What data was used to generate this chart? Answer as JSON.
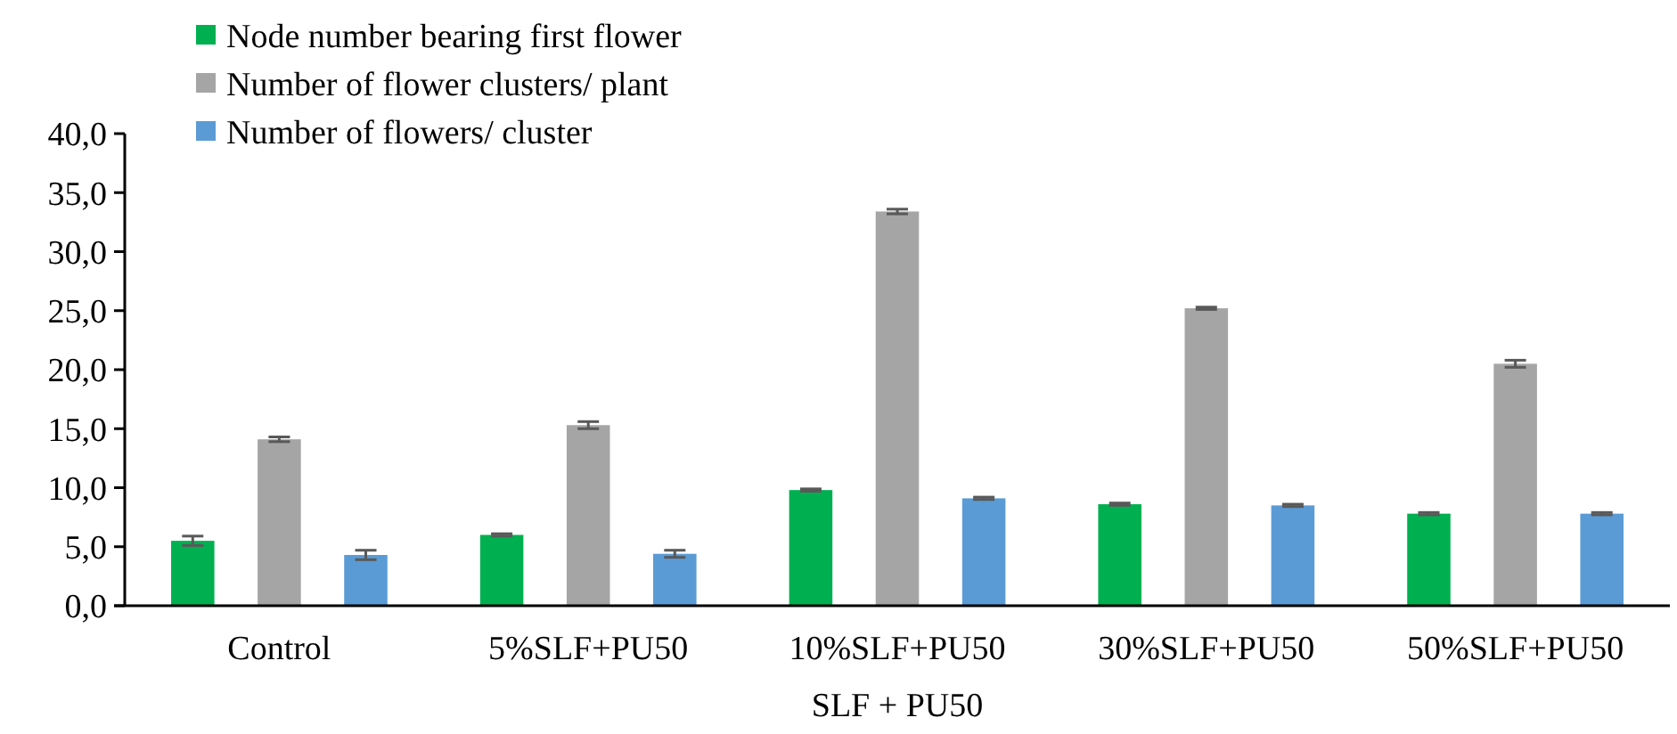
{
  "chart_data": {
    "type": "bar",
    "xlabel": "SLF + PU50",
    "categories": [
      "Control",
      "5%SLF+PU50",
      "10%SLF+PU50",
      "30%SLF+PU50",
      "50%SLF+PU50"
    ],
    "series": [
      {
        "name": "Node number bearing first flower",
        "color": "#00b050",
        "values": [
          5.5,
          6.0,
          9.8,
          8.6,
          7.8
        ],
        "errors": [
          0.4,
          0.1,
          0.1,
          0.1,
          0.1
        ]
      },
      {
        "name": "Number of flower clusters/ plant",
        "color": "#a5a5a5",
        "values": [
          14.1,
          15.3,
          33.4,
          25.2,
          20.5
        ],
        "errors": [
          0.2,
          0.3,
          0.2,
          0.1,
          0.3
        ]
      },
      {
        "name": "Number of flowers/ cluster",
        "color": "#5b9bd5",
        "values": [
          4.3,
          4.4,
          9.1,
          8.5,
          7.8
        ],
        "errors": [
          0.4,
          0.3,
          0.1,
          0.1,
          0.1
        ]
      }
    ],
    "ylim": [
      0,
      40
    ],
    "yticks": [
      {
        "value": 0,
        "label": "0,0"
      },
      {
        "value": 5,
        "label": "5,0"
      },
      {
        "value": 10,
        "label": "10,0"
      },
      {
        "value": 15,
        "label": "15,0"
      },
      {
        "value": 20,
        "label": "20,0"
      },
      {
        "value": 25,
        "label": "25,0"
      },
      {
        "value": 30,
        "label": "30,0"
      },
      {
        "value": 35,
        "label": "35,0"
      },
      {
        "value": 40,
        "label": "40,0"
      }
    ],
    "grid": false,
    "legend": "top left"
  }
}
